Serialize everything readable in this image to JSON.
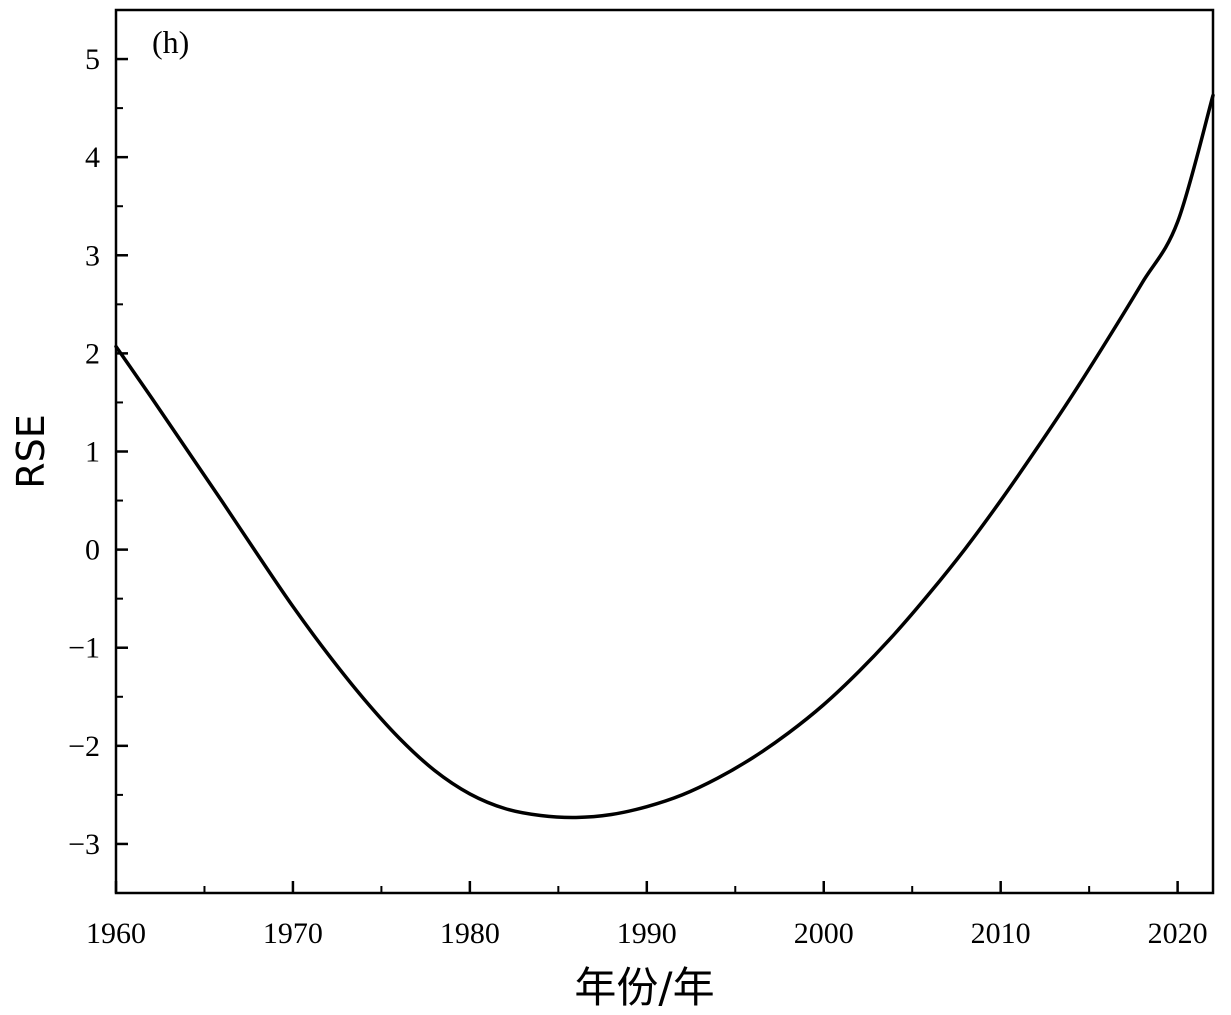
{
  "chart_data": {
    "type": "line",
    "panel_label": "(h)",
    "xlabel": "年份/年",
    "ylabel": "RSE",
    "xlim": [
      1960,
      2022
    ],
    "ylim": [
      -3.5,
      5.5
    ],
    "x_ticks": [
      1960,
      1970,
      1980,
      1990,
      2000,
      2010,
      2020
    ],
    "x_tick_labels": [
      "1960",
      "1970",
      "1980",
      "1990",
      "2000",
      "2010",
      "2020"
    ],
    "y_ticks": [
      -3,
      -2,
      -1,
      0,
      1,
      2,
      3,
      4,
      5
    ],
    "y_tick_labels": [
      "−3",
      "−2",
      "−1",
      "0",
      "1",
      "2",
      "3",
      "4",
      "5"
    ],
    "grid": false,
    "series": [
      {
        "color": "#000000",
        "x": [
          1960,
          1962,
          1964,
          1966,
          1968,
          1970,
          1972,
          1974,
          1976,
          1978,
          1980,
          1982,
          1984,
          1986,
          1988,
          1990,
          1992,
          1994,
          1996,
          1998,
          2000,
          2002,
          2004,
          2006,
          2008,
          2010,
          2012,
          2014,
          2016,
          2018,
          2020,
          2022
        ],
        "y": [
          2.07,
          1.55,
          1.02,
          0.49,
          -0.05,
          -0.58,
          -1.07,
          -1.52,
          -1.92,
          -2.25,
          -2.49,
          -2.64,
          -2.71,
          -2.73,
          -2.7,
          -2.62,
          -2.5,
          -2.33,
          -2.12,
          -1.87,
          -1.58,
          -1.24,
          -0.86,
          -0.44,
          0.01,
          0.5,
          1.02,
          1.56,
          2.13,
          2.72,
          3.34,
          4.63
        ]
      }
    ]
  }
}
